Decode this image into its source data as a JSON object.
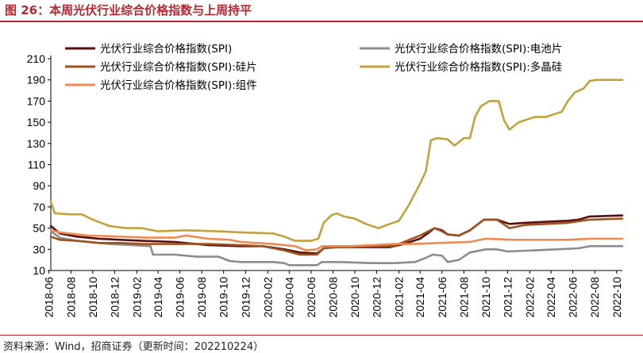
{
  "header": {
    "title": "图 26：本周光伏行业综合价格指数与上周持平"
  },
  "footer": {
    "source": "资料来源：Wind，招商证券（更新时间：202210224）"
  },
  "chart_data": {
    "type": "line",
    "ylim": [
      10,
      210
    ],
    "yticks": [
      10,
      30,
      50,
      70,
      90,
      110,
      130,
      150,
      170,
      190,
      210
    ],
    "xlim": [
      "2018-06-20",
      "2022-10-31"
    ],
    "xticks": [
      "2018-06",
      "2018-08",
      "2018-10",
      "2018-12",
      "2019-02",
      "2019-04",
      "2019-06",
      "2019-08",
      "2019-10",
      "2019-12",
      "2020-02",
      "2020-04",
      "2020-06",
      "2020-08",
      "2020-10",
      "2020-12",
      "2021-02",
      "2021-04",
      "2021-06",
      "2021-08",
      "2021-10",
      "2021-12",
      "2022-02",
      "2022-04",
      "2022-06",
      "2022-08",
      "2022-10"
    ],
    "grid": false,
    "legend_position": "top",
    "series": [
      {
        "name": "光伏行业综合价格指数(SPI)",
        "color": "#5a0f0f",
        "points": [
          [
            "2018-06-20",
            52
          ],
          [
            "2018-07-15",
            45
          ],
          [
            "2018-09-01",
            42
          ],
          [
            "2018-11-01",
            40
          ],
          [
            "2019-01-01",
            39
          ],
          [
            "2019-03-01",
            38
          ],
          [
            "2019-06-01",
            37
          ],
          [
            "2019-09-01",
            34
          ],
          [
            "2019-12-01",
            33
          ],
          [
            "2020-02-01",
            33
          ],
          [
            "2020-04-01",
            30
          ],
          [
            "2020-05-15",
            27
          ],
          [
            "2020-07-01",
            26
          ],
          [
            "2020-07-20",
            31
          ],
          [
            "2020-08-15",
            32
          ],
          [
            "2020-12-01",
            32
          ],
          [
            "2021-01-20",
            32
          ],
          [
            "2021-03-01",
            35
          ],
          [
            "2021-04-15",
            40
          ],
          [
            "2021-05-10",
            46
          ],
          [
            "2021-05-25",
            50
          ],
          [
            "2021-06-15",
            48
          ],
          [
            "2021-07-01",
            44
          ],
          [
            "2021-08-01",
            43
          ],
          [
            "2021-09-01",
            48
          ],
          [
            "2021-10-10",
            58
          ],
          [
            "2021-11-15",
            58
          ],
          [
            "2021-12-20",
            54
          ],
          [
            "2022-02-01",
            55
          ],
          [
            "2022-04-01",
            56
          ],
          [
            "2022-06-01",
            57
          ],
          [
            "2022-07-01",
            58
          ],
          [
            "2022-08-01",
            61
          ],
          [
            "2022-10-31",
            62
          ]
        ]
      },
      {
        "name": "光伏行业综合价格指数(SPI):电池片",
        "color": "#8c8c8c",
        "points": [
          [
            "2018-06-20",
            47
          ],
          [
            "2018-07-15",
            41
          ],
          [
            "2018-09-01",
            38
          ],
          [
            "2018-12-01",
            35
          ],
          [
            "2019-02-01",
            34
          ],
          [
            "2019-03-25",
            33
          ],
          [
            "2019-04-01",
            25
          ],
          [
            "2019-06-01",
            25
          ],
          [
            "2019-08-01",
            23
          ],
          [
            "2019-10-01",
            23
          ],
          [
            "2019-11-01",
            19
          ],
          [
            "2019-12-01",
            18
          ],
          [
            "2020-03-01",
            18
          ],
          [
            "2020-04-01",
            17
          ],
          [
            "2020-04-15",
            15
          ],
          [
            "2020-06-01",
            15
          ],
          [
            "2020-07-01",
            15
          ],
          [
            "2020-07-15",
            18
          ],
          [
            "2020-09-01",
            18
          ],
          [
            "2020-12-01",
            17
          ],
          [
            "2021-02-01",
            17
          ],
          [
            "2021-04-01",
            18
          ],
          [
            "2021-05-01",
            22
          ],
          [
            "2021-05-20",
            25
          ],
          [
            "2021-06-15",
            24
          ],
          [
            "2021-07-01",
            18
          ],
          [
            "2021-08-01",
            20
          ],
          [
            "2021-09-01",
            27
          ],
          [
            "2021-10-15",
            30
          ],
          [
            "2021-11-15",
            30
          ],
          [
            "2021-12-15",
            28
          ],
          [
            "2022-03-01",
            29
          ],
          [
            "2022-05-01",
            30
          ],
          [
            "2022-07-01",
            31
          ],
          [
            "2022-08-01",
            33
          ],
          [
            "2022-10-31",
            33
          ]
        ]
      },
      {
        "name": "光伏行业综合价格指数(SPI):硅片",
        "color": "#a0521e",
        "points": [
          [
            "2018-06-20",
            42
          ],
          [
            "2018-07-15",
            39
          ],
          [
            "2018-09-01",
            38
          ],
          [
            "2018-11-01",
            36
          ],
          [
            "2019-01-01",
            36
          ],
          [
            "2019-03-01",
            35
          ],
          [
            "2019-06-01",
            35
          ],
          [
            "2019-09-01",
            35
          ],
          [
            "2019-12-01",
            34
          ],
          [
            "2020-02-01",
            33
          ],
          [
            "2020-04-01",
            29
          ],
          [
            "2020-05-15",
            25
          ],
          [
            "2020-07-01",
            25
          ],
          [
            "2020-07-20",
            31
          ],
          [
            "2020-09-01",
            32
          ],
          [
            "2021-01-01",
            33
          ],
          [
            "2021-02-01",
            33
          ],
          [
            "2021-03-01",
            37
          ],
          [
            "2021-04-15",
            43
          ],
          [
            "2021-05-25",
            50
          ],
          [
            "2021-06-15",
            47
          ],
          [
            "2021-07-01",
            44
          ],
          [
            "2021-08-01",
            43
          ],
          [
            "2021-09-01",
            48
          ],
          [
            "2021-10-10",
            58
          ],
          [
            "2021-11-15",
            58
          ],
          [
            "2021-12-20",
            50
          ],
          [
            "2022-02-01",
            53
          ],
          [
            "2022-04-01",
            54
          ],
          [
            "2022-06-01",
            55
          ],
          [
            "2022-08-01",
            58
          ],
          [
            "2022-10-31",
            59
          ]
        ]
      },
      {
        "name": "光伏行业综合价格指数(SPI):多晶硅",
        "color": "#c2a23a",
        "points": [
          [
            "2018-06-20",
            75
          ],
          [
            "2018-07-01",
            64
          ],
          [
            "2018-08-15",
            63
          ],
          [
            "2018-09-15",
            63
          ],
          [
            "2018-10-15",
            58
          ],
          [
            "2018-12-01",
            52
          ],
          [
            "2019-01-15",
            50
          ],
          [
            "2019-03-01",
            50
          ],
          [
            "2019-04-15",
            47
          ],
          [
            "2019-07-01",
            48
          ],
          [
            "2019-10-01",
            47
          ],
          [
            "2019-12-01",
            46
          ],
          [
            "2020-03-01",
            45
          ],
          [
            "2020-04-01",
            42
          ],
          [
            "2020-05-01",
            38
          ],
          [
            "2020-06-15",
            38
          ],
          [
            "2020-07-05",
            40
          ],
          [
            "2020-07-20",
            55
          ],
          [
            "2020-08-10",
            62
          ],
          [
            "2020-08-25",
            64
          ],
          [
            "2020-09-15",
            61
          ],
          [
            "2020-10-15",
            59
          ],
          [
            "2020-11-15",
            54
          ],
          [
            "2020-12-20",
            50
          ],
          [
            "2021-01-20",
            54
          ],
          [
            "2021-02-15",
            57
          ],
          [
            "2021-03-15",
            72
          ],
          [
            "2021-04-15",
            92
          ],
          [
            "2021-05-01",
            104
          ],
          [
            "2021-05-15",
            133
          ],
          [
            "2021-06-01",
            135
          ],
          [
            "2021-06-30",
            134
          ],
          [
            "2021-07-20",
            128
          ],
          [
            "2021-08-15",
            135
          ],
          [
            "2021-09-01",
            135
          ],
          [
            "2021-09-15",
            155
          ],
          [
            "2021-10-01",
            165
          ],
          [
            "2021-10-25",
            170
          ],
          [
            "2021-11-20",
            170
          ],
          [
            "2021-12-05",
            152
          ],
          [
            "2021-12-20",
            143
          ],
          [
            "2022-01-15",
            150
          ],
          [
            "2022-03-01",
            155
          ],
          [
            "2022-04-01",
            155
          ],
          [
            "2022-05-15",
            160
          ],
          [
            "2022-06-01",
            170
          ],
          [
            "2022-06-20",
            178
          ],
          [
            "2022-07-15",
            182
          ],
          [
            "2022-08-01",
            189
          ],
          [
            "2022-08-20",
            190
          ],
          [
            "2022-10-31",
            190
          ]
        ]
      },
      {
        "name": "光伏行业综合价格指数(SPI):组件",
        "color": "#ee8a52",
        "points": [
          [
            "2018-06-20",
            48
          ],
          [
            "2018-07-15",
            46
          ],
          [
            "2018-10-01",
            43
          ],
          [
            "2019-01-01",
            42
          ],
          [
            "2019-03-15",
            41
          ],
          [
            "2019-04-01",
            41
          ],
          [
            "2019-06-01",
            41
          ],
          [
            "2019-07-01",
            43
          ],
          [
            "2019-09-01",
            40
          ],
          [
            "2019-11-01",
            39
          ],
          [
            "2019-12-01",
            37
          ],
          [
            "2020-03-01",
            35
          ],
          [
            "2020-05-01",
            33
          ],
          [
            "2020-06-01",
            29
          ],
          [
            "2020-07-01",
            30
          ],
          [
            "2020-07-15",
            33
          ],
          [
            "2020-10-01",
            33
          ],
          [
            "2020-12-01",
            34
          ],
          [
            "2021-02-01",
            35
          ],
          [
            "2021-04-01",
            35
          ],
          [
            "2021-06-01",
            36
          ],
          [
            "2021-09-01",
            37
          ],
          [
            "2021-10-15",
            40
          ],
          [
            "2022-01-01",
            39
          ],
          [
            "2022-06-01",
            39
          ],
          [
            "2022-08-01",
            40
          ],
          [
            "2022-10-31",
            40
          ]
        ]
      }
    ]
  }
}
